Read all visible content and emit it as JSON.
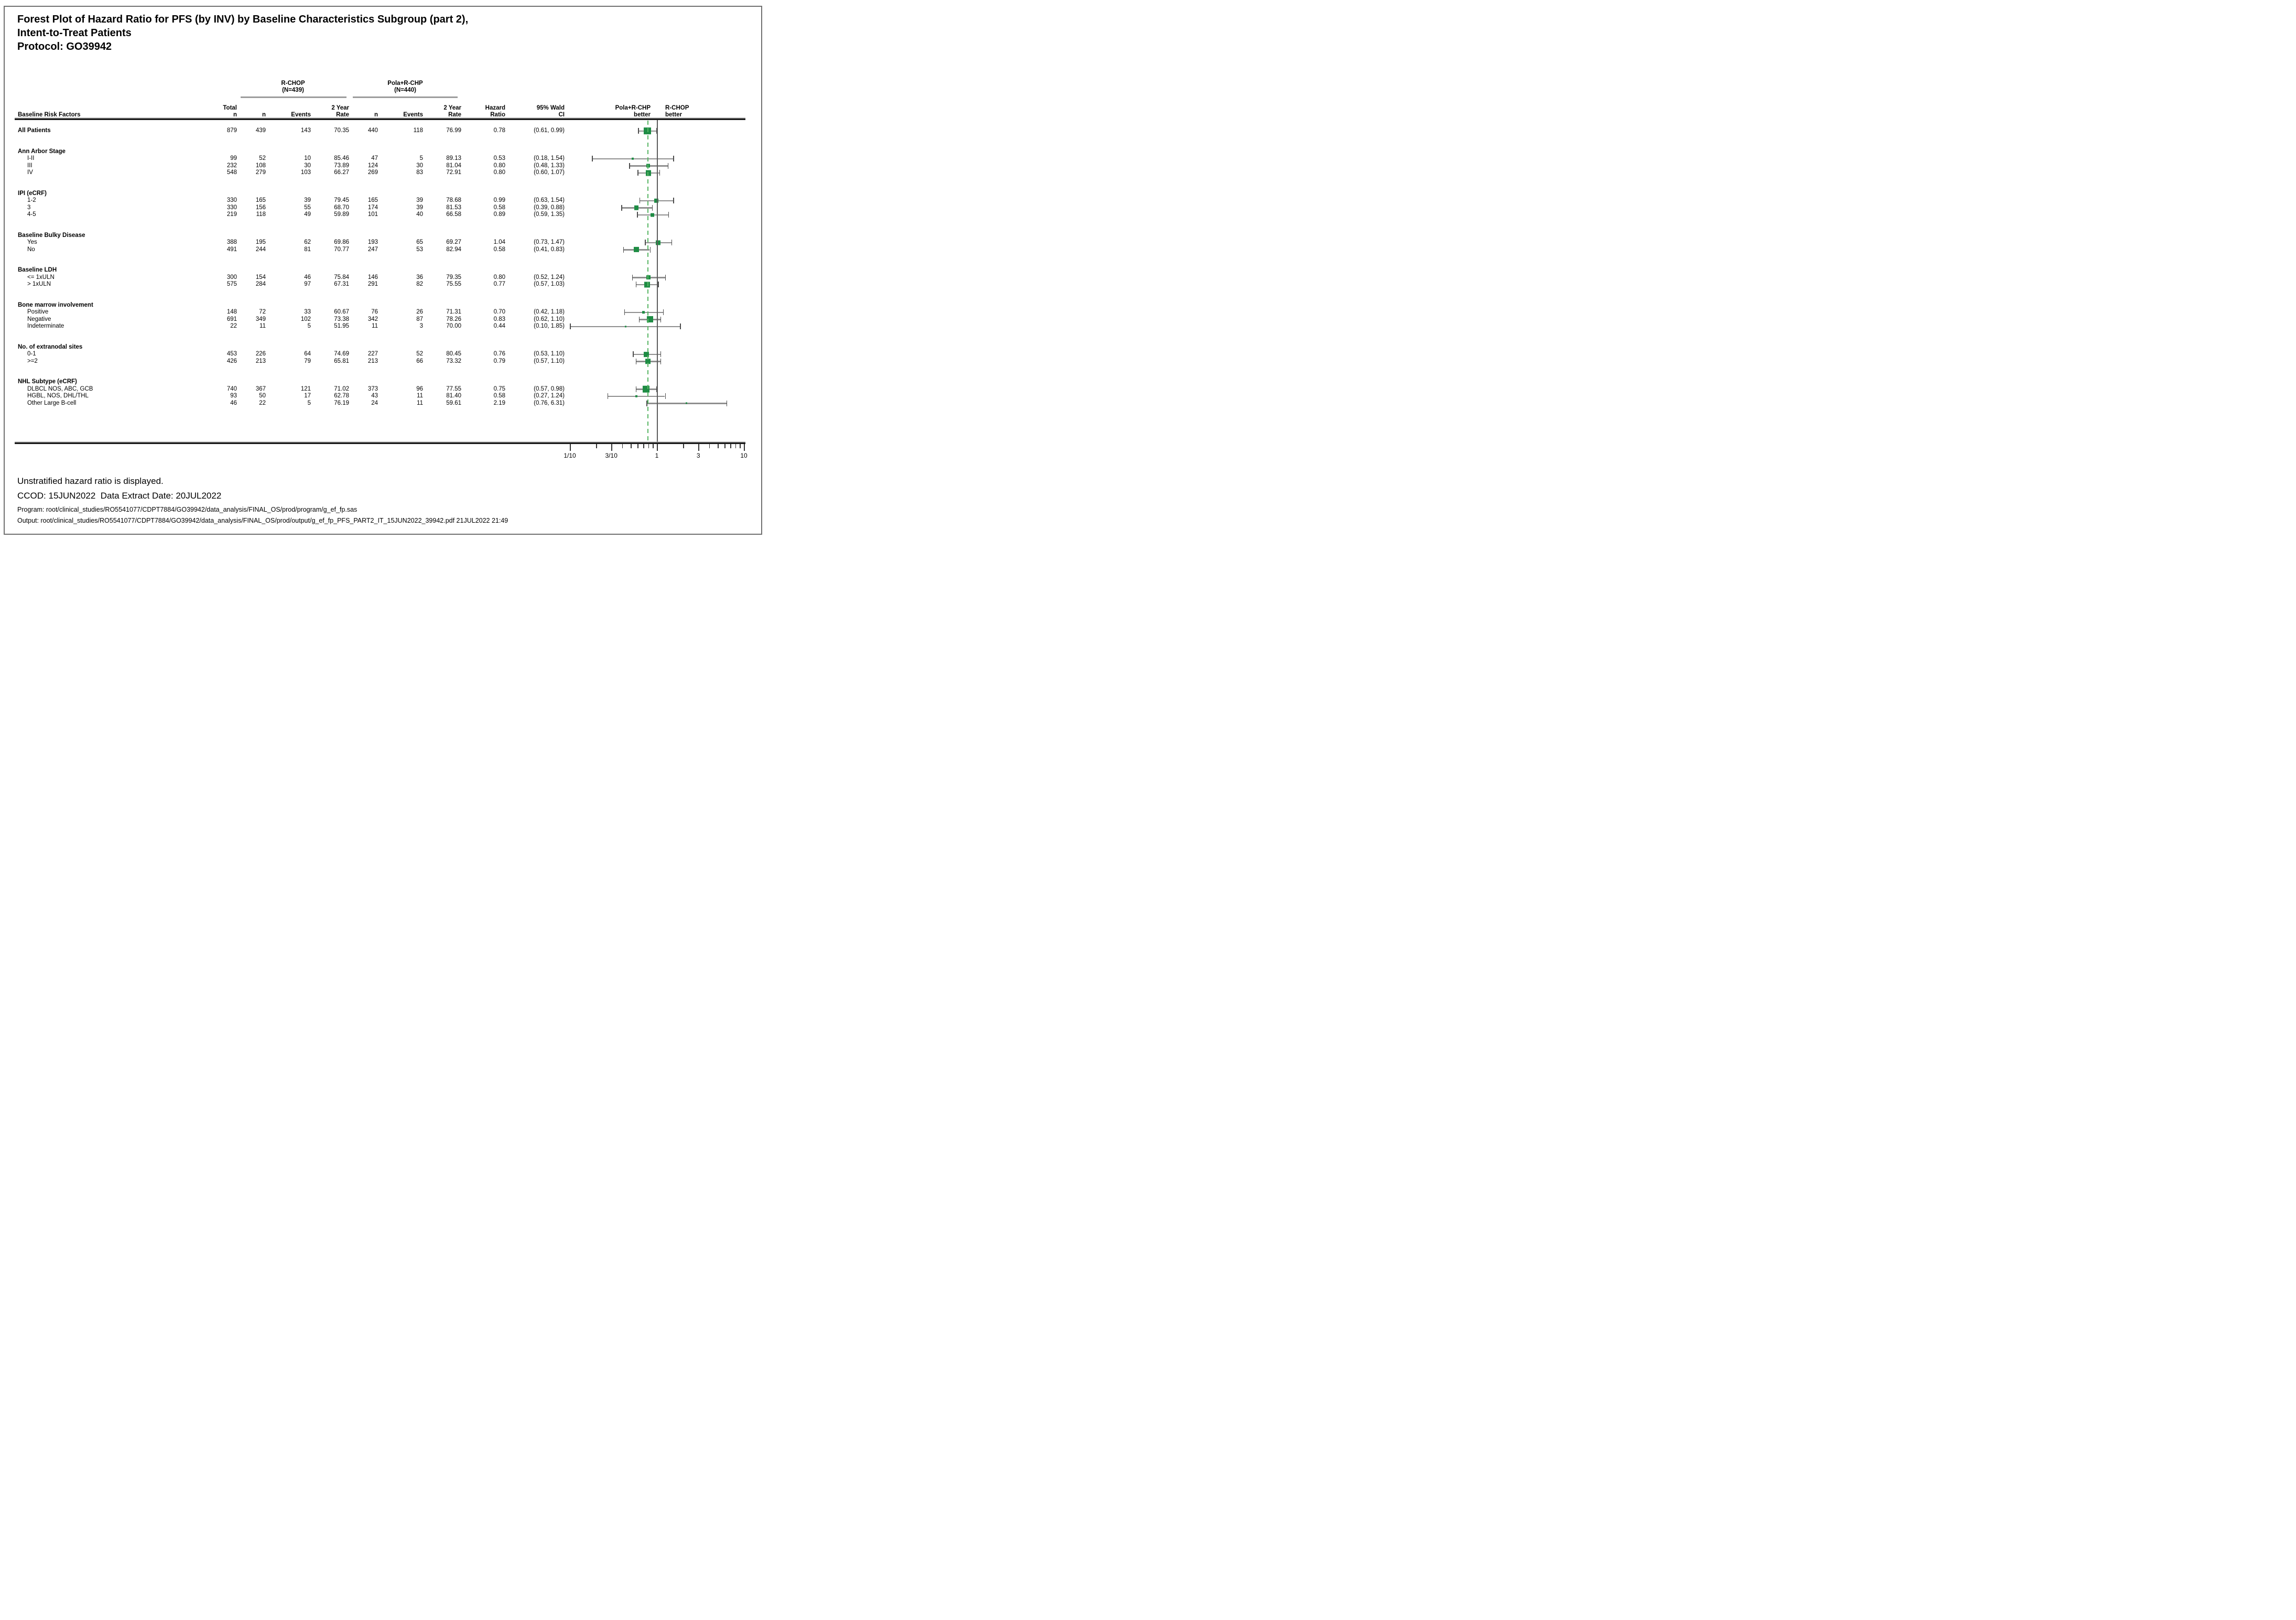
{
  "page": {
    "title_lines": [
      "Forest Plot of Hazard Ratio for PFS (by INV) by Baseline Characteristics Subgroup (part 2),",
      "Intent-to-Treat Patients",
      "Protocol: GO39942"
    ],
    "footnotes": [
      "Unstratified hazard ratio is displayed.",
      "CCOD: 15JUN2022  Data Extract Date: 20JUL2022",
      "Program: root/clinical_studies/RO5541077/CDPT7884/GO39942/data_analysis/FINAL_OS/prod/program/g_ef_fp.sas",
      "Output: root/clinical_studies/RO5541077/CDPT7884/GO39942/data_analysis/FINAL_OS/prod/output/g_ef_fp_PFS_PART2_IT_15JUN2022_39942.pdf 21JUL2022 21:49"
    ]
  },
  "header": {
    "risk_factors": "Baseline Risk Factors",
    "total": [
      "Total",
      "n"
    ],
    "group1": {
      "name": "R-CHOP",
      "n": "(N=439)"
    },
    "group2": {
      "name": "Pola+R-CHP",
      "n": "(N=440)"
    },
    "n": "n",
    "events": "Events",
    "rate": [
      "2 Year",
      "Rate"
    ],
    "hazard": [
      "Hazard",
      "Ratio"
    ],
    "ci": [
      "95% Wald",
      "CI"
    ],
    "better_left": [
      "Pola+R-CHP",
      "better"
    ],
    "better_right": [
      "R-CHOP",
      "better"
    ]
  },
  "colors": {
    "marker_green": "#1e8c44",
    "dash_green": "#58b564",
    "whisker_gray": "#8f8f8f",
    "cap_gray": "#4c4c4c",
    "rule_black": "#1b1b1b",
    "frame_gray": "#707070"
  },
  "chart_data": {
    "type": "forest",
    "title": "Forest Plot of Hazard Ratio for PFS (by INV) by Baseline Characteristics Subgroup (part 2), Intent-to-Treat Patients, Protocol: GO39942",
    "x_scale": "log10",
    "x_range": [
      0.1,
      10
    ],
    "reference_line": 1,
    "overall_hr_line": 0.78,
    "legend_left": "Pola+R-CHP better",
    "legend_right": "R-CHOP better",
    "x_axis": {
      "ticks": [
        {
          "value": 0.1,
          "label": "1/10"
        },
        {
          "value": 0.3,
          "label": "3/10"
        },
        {
          "value": 1,
          "label": "1"
        },
        {
          "value": 3,
          "label": "3"
        },
        {
          "value": 10,
          "label": "10"
        }
      ],
      "minor_ticks": [
        0.2,
        0.4,
        0.5,
        0.6,
        0.7,
        0.8,
        0.9,
        2,
        4,
        5,
        6,
        7,
        8,
        9
      ]
    },
    "rows": [
      {
        "label": "All Patients",
        "bold": true,
        "total": "879",
        "rchop_n": "439",
        "rchop_events": "143",
        "rchop_rate": "70.35",
        "pola_n": "440",
        "pola_events": "118",
        "pola_rate": "76.99",
        "hr_text": "0.78",
        "ci_text": "(0.61, 0.99)",
        "hr": 0.78,
        "ci_low": 0.61,
        "ci_high": 0.99
      },
      {
        "label": "Ann Arbor Stage",
        "group": true
      },
      {
        "label": "I-II",
        "indent": true,
        "total": "99",
        "rchop_n": "52",
        "rchop_events": "10",
        "rchop_rate": "85.46",
        "pola_n": "47",
        "pola_events": "5",
        "pola_rate": "89.13",
        "hr_text": "0.53",
        "ci_text": "(0.18, 1.54)",
        "hr": 0.53,
        "ci_low": 0.18,
        "ci_high": 1.54
      },
      {
        "label": "III",
        "indent": true,
        "total": "232",
        "rchop_n": "108",
        "rchop_events": "30",
        "rchop_rate": "73.89",
        "pola_n": "124",
        "pola_events": "30",
        "pola_rate": "81.04",
        "hr_text": "0.80",
        "ci_text": "(0.48, 1.33)",
        "hr": 0.8,
        "ci_low": 0.48,
        "ci_high": 1.33
      },
      {
        "label": "IV",
        "indent": true,
        "total": "548",
        "rchop_n": "279",
        "rchop_events": "103",
        "rchop_rate": "66.27",
        "pola_n": "269",
        "pola_events": "83",
        "pola_rate": "72.91",
        "hr_text": "0.80",
        "ci_text": "(0.60, 1.07)",
        "hr": 0.8,
        "ci_low": 0.6,
        "ci_high": 1.07
      },
      {
        "label": "IPI (eCRF)",
        "group": true
      },
      {
        "label": "1-2",
        "indent": true,
        "total": "330",
        "rchop_n": "165",
        "rchop_events": "39",
        "rchop_rate": "79.45",
        "pola_n": "165",
        "pola_events": "39",
        "pola_rate": "78.68",
        "hr_text": "0.99",
        "ci_text": "(0.63, 1.54)",
        "hr": 0.99,
        "ci_low": 0.63,
        "ci_high": 1.54
      },
      {
        "label": "3",
        "indent": true,
        "total": "330",
        "rchop_n": "156",
        "rchop_events": "55",
        "rchop_rate": "68.70",
        "pola_n": "174",
        "pola_events": "39",
        "pola_rate": "81.53",
        "hr_text": "0.58",
        "ci_text": "(0.39, 0.88)",
        "hr": 0.58,
        "ci_low": 0.39,
        "ci_high": 0.88
      },
      {
        "label": "4-5",
        "indent": true,
        "total": "219",
        "rchop_n": "118",
        "rchop_events": "49",
        "rchop_rate": "59.89",
        "pola_n": "101",
        "pola_events": "40",
        "pola_rate": "66.58",
        "hr_text": "0.89",
        "ci_text": "(0.59, 1.35)",
        "hr": 0.89,
        "ci_low": 0.59,
        "ci_high": 1.35
      },
      {
        "label": "Baseline Bulky Disease",
        "group": true
      },
      {
        "label": "Yes",
        "indent": true,
        "total": "388",
        "rchop_n": "195",
        "rchop_events": "62",
        "rchop_rate": "69.86",
        "pola_n": "193",
        "pola_events": "65",
        "pola_rate": "69.27",
        "hr_text": "1.04",
        "ci_text": "(0.73, 1.47)",
        "hr": 1.04,
        "ci_low": 0.73,
        "ci_high": 1.47
      },
      {
        "label": "No",
        "indent": true,
        "total": "491",
        "rchop_n": "244",
        "rchop_events": "81",
        "rchop_rate": "70.77",
        "pola_n": "247",
        "pola_events": "53",
        "pola_rate": "82.94",
        "hr_text": "0.58",
        "ci_text": "(0.41, 0.83)",
        "hr": 0.58,
        "ci_low": 0.41,
        "ci_high": 0.83
      },
      {
        "label": "Baseline LDH",
        "group": true
      },
      {
        "label": "<= 1xULN",
        "indent": true,
        "total": "300",
        "rchop_n": "154",
        "rchop_events": "46",
        "rchop_rate": "75.84",
        "pola_n": "146",
        "pola_events": "36",
        "pola_rate": "79.35",
        "hr_text": "0.80",
        "ci_text": "(0.52, 1.24)",
        "hr": 0.8,
        "ci_low": 0.52,
        "ci_high": 1.24
      },
      {
        "label": "> 1xULN",
        "indent": true,
        "total": "575",
        "rchop_n": "284",
        "rchop_events": "97",
        "rchop_rate": "67.31",
        "pola_n": "291",
        "pola_events": "82",
        "pola_rate": "75.55",
        "hr_text": "0.77",
        "ci_text": "(0.57, 1.03)",
        "hr": 0.77,
        "ci_low": 0.57,
        "ci_high": 1.03
      },
      {
        "label": "Bone marrow involvement",
        "group": true
      },
      {
        "label": "Positive",
        "indent": true,
        "total": "148",
        "rchop_n": "72",
        "rchop_events": "33",
        "rchop_rate": "60.67",
        "pola_n": "76",
        "pola_events": "26",
        "pola_rate": "71.31",
        "hr_text": "0.70",
        "ci_text": "(0.42, 1.18)",
        "hr": 0.7,
        "ci_low": 0.42,
        "ci_high": 1.18
      },
      {
        "label": "Negative",
        "indent": true,
        "total": "691",
        "rchop_n": "349",
        "rchop_events": "102",
        "rchop_rate": "73.38",
        "pola_n": "342",
        "pola_events": "87",
        "pola_rate": "78.26",
        "hr_text": "0.83",
        "ci_text": "(0.62, 1.10)",
        "hr": 0.83,
        "ci_low": 0.62,
        "ci_high": 1.1
      },
      {
        "label": "Indeterminate",
        "indent": true,
        "total": "22",
        "rchop_n": "11",
        "rchop_events": "5",
        "rchop_rate": "51.95",
        "pola_n": "11",
        "pola_events": "3",
        "pola_rate": "70.00",
        "hr_text": "0.44",
        "ci_text": "(0.10, 1.85)",
        "hr": 0.44,
        "ci_low": 0.1,
        "ci_high": 1.85
      },
      {
        "label": "No. of extranodal sites",
        "group": true
      },
      {
        "label": "0-1",
        "indent": true,
        "total": "453",
        "rchop_n": "226",
        "rchop_events": "64",
        "rchop_rate": "74.69",
        "pola_n": "227",
        "pola_events": "52",
        "pola_rate": "80.45",
        "hr_text": "0.76",
        "ci_text": "(0.53, 1.10)",
        "hr": 0.76,
        "ci_low": 0.53,
        "ci_high": 1.1
      },
      {
        "label": ">=2",
        "indent": true,
        "total": "426",
        "rchop_n": "213",
        "rchop_events": "79",
        "rchop_rate": "65.81",
        "pola_n": "213",
        "pola_events": "66",
        "pola_rate": "73.32",
        "hr_text": "0.79",
        "ci_text": "(0.57, 1.10)",
        "hr": 0.79,
        "ci_low": 0.57,
        "ci_high": 1.1
      },
      {
        "label": "NHL Subtype (eCRF)",
        "group": true
      },
      {
        "label": "DLBCL NOS, ABC, GCB",
        "indent": true,
        "total": "740",
        "rchop_n": "367",
        "rchop_events": "121",
        "rchop_rate": "71.02",
        "pola_n": "373",
        "pola_events": "96",
        "pola_rate": "77.55",
        "hr_text": "0.75",
        "ci_text": "(0.57, 0.98)",
        "hr": 0.75,
        "ci_low": 0.57,
        "ci_high": 0.98
      },
      {
        "label": "HGBL, NOS, DHL/THL",
        "indent": true,
        "total": "93",
        "rchop_n": "50",
        "rchop_events": "17",
        "rchop_rate": "62.78",
        "pola_n": "43",
        "pola_events": "11",
        "pola_rate": "81.40",
        "hr_text": "0.58",
        "ci_text": "(0.27, 1.24)",
        "hr": 0.58,
        "ci_low": 0.27,
        "ci_high": 1.24
      },
      {
        "label": "Other Large B-cell",
        "indent": true,
        "total": "46",
        "rchop_n": "22",
        "rchop_events": "5",
        "rchop_rate": "76.19",
        "pola_n": "24",
        "pola_events": "11",
        "pola_rate": "59.61",
        "hr_text": "2.19",
        "ci_text": "(0.76, 6.31)",
        "hr": 2.19,
        "ci_low": 0.76,
        "ci_high": 6.31
      }
    ]
  }
}
